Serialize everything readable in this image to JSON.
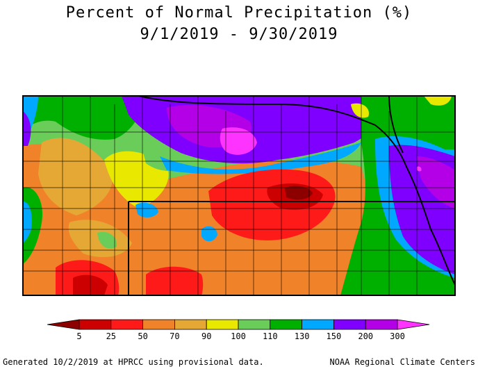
{
  "title": {
    "line1": "Percent of Normal Precipitation (%)",
    "line2": "9/1/2019 - 9/30/2019"
  },
  "legend": {
    "colors": [
      "#8c0000",
      "#cc0000",
      "#ff1a1a",
      "#f0822a",
      "#e6a835",
      "#e8e800",
      "#6acd5a",
      "#00b000",
      "#00a8ff",
      "#8000ff",
      "#b400e6",
      "#ff33ff"
    ],
    "labels": [
      "5",
      "25",
      "50",
      "70",
      "90",
      "100",
      "110",
      "130",
      "150",
      "200",
      "300"
    ]
  },
  "footer": {
    "left": "Generated 10/2/2019 at HPRCC using provisional data.",
    "right": "NOAA Regional Climate Centers"
  }
}
